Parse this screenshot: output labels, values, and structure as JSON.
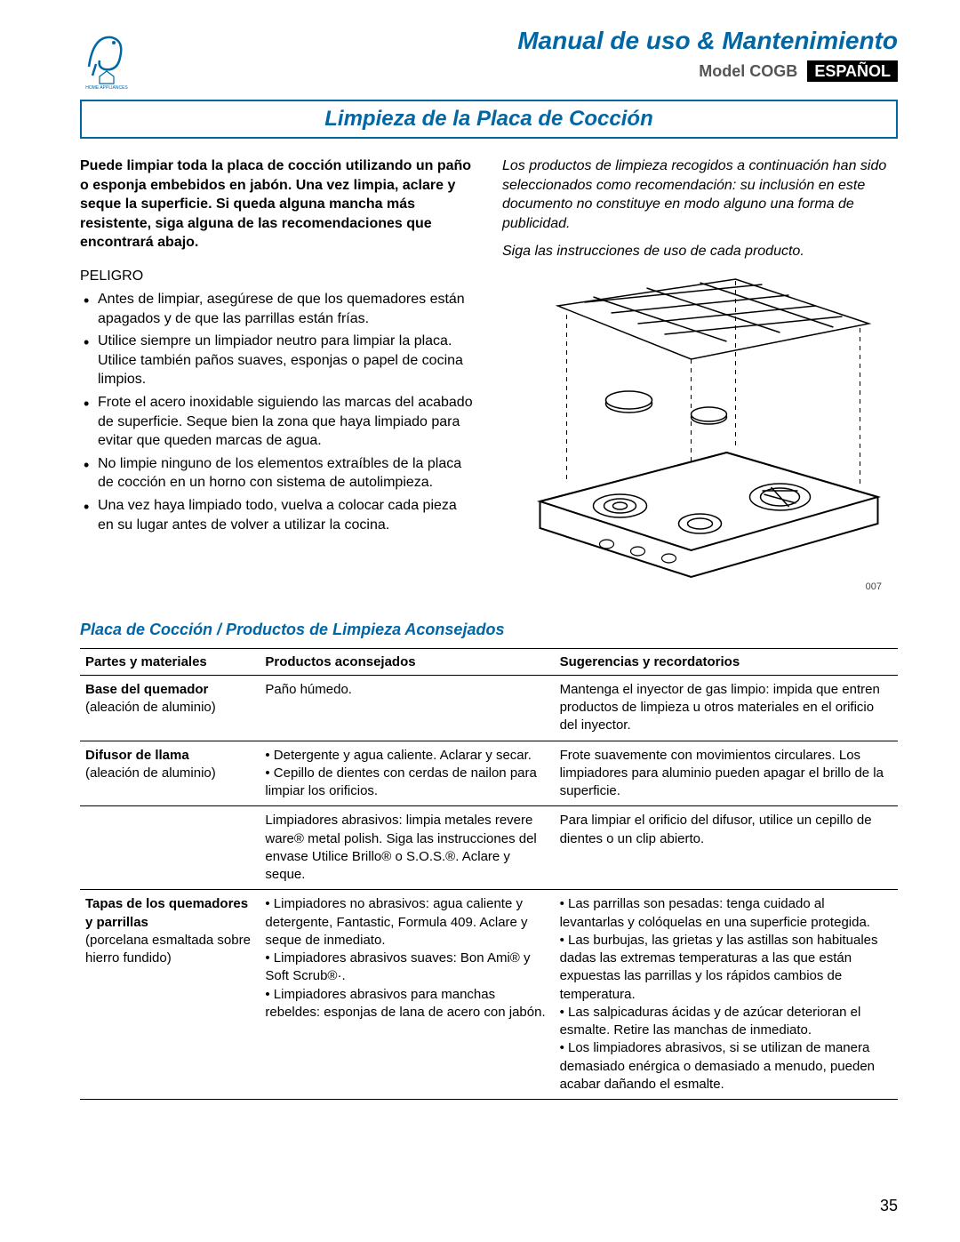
{
  "header": {
    "manual_title": "Manual de uso & Mantenimiento",
    "model_label": "Model",
    "model_value": "COGB",
    "language_badge": "ESPAÑOL"
  },
  "section_title": "Limpieza de la Placa de Cocción",
  "intro_left": "Puede limpiar toda la placa de cocción utilizando un paño o esponja embebidos en jabón. Una vez limpia, aclare y seque la superficie. Si queda alguna mancha más resistente, siga alguna de las recomendaciones que encontrará abajo.",
  "intro_right_1": "Los productos de limpieza recogidos a continuación han sido seleccionados como recomendación: su inclusión en este documento no constituye en modo alguno una forma de publicidad.",
  "intro_right_2": "Siga las instrucciones de uso de cada producto.",
  "danger_label": "PELIGRO",
  "danger_bullets": [
    "Antes de limpiar, asegúrese de que los quemadores están apagados y de que las parrillas están frías.",
    "Utilice siempre un limpiador neutro para limpiar la placa. Utilice también paños suaves, esponjas o papel de cocina limpios.",
    "Frote el acero inoxidable siguiendo las marcas del acabado de superficie. Seque bien la zona que haya limpiado para evitar que queden marcas de agua.",
    "No limpie ninguno de los elementos extraíbles de la placa de cocción en un horno con sistema de autolimpieza.",
    "Una vez haya limpiado todo, vuelva a colocar cada pieza en su lugar antes de volver a utilizar la cocina."
  ],
  "diagram_label": "007",
  "table_heading": "Placa de Cocción / Productos de Limpieza Aconsejados",
  "table": {
    "columns": [
      "Partes y materiales",
      "Productos aconsejados",
      "Sugerencias y recordatorios"
    ],
    "col_widths": [
      "22%",
      "36%",
      "42%"
    ],
    "rows": [
      {
        "part_name": "Base del quemador",
        "part_sub": "(aleación de aluminio)",
        "products": "Paño húmedo.",
        "tips": "Mantenga el inyector de gas limpio: impida que entren productos de limpieza u otros materiales en el orificio del inyector."
      },
      {
        "part_name": "Difusor de llama",
        "part_sub": "(aleación de aluminio)",
        "products": "• Detergente y agua caliente. Aclarar y secar.\n• Cepillo de dientes con cerdas de nailon para limpiar los orificios.",
        "tips": "Frote suavemente con movimientos circulares. Los limpiadores para aluminio pueden apagar el brillo de la superficie."
      },
      {
        "part_name": "",
        "part_sub": "",
        "products": "Limpiadores abrasivos: limpia metales revere ware® metal polish. Siga las instrucciones del envase Utilice Brillo® o S.O.S.®. Aclare y seque.",
        "tips": "Para limpiar el orificio del difusor, utilice un cepillo de dientes o un clip abierto."
      },
      {
        "part_name": "Tapas de los quemadores y parrillas",
        "part_sub": "(porcelana esmaltada sobre hierro fundido)",
        "products": "• Limpiadores no abrasivos: agua caliente y detergente, Fantastic, Formula 409. Aclare y seque de inmediato.\n• Limpiadores abrasivos suaves: Bon Ami® y Soft Scrub®·.\n• Limpiadores abrasivos para manchas rebeldes: esponjas de lana de acero con jabón.",
        "tips": "• Las parrillas son pesadas: tenga cuidado al levantarlas y colóquelas en una superficie protegida.\n• Las burbujas, las grietas y las astillas son habituales dadas las extremas temperaturas a las que están expuestas las parrillas y los rápidos cambios de temperatura.\n• Las salpicaduras ácidas y de azúcar deterioran el esmalte. Retire las manchas de inmediato.\n• Los limpiadores abrasivos, si se utilizan de manera demasiado enérgica o demasiado a menudo, pueden acabar dañando el esmalte."
      }
    ]
  },
  "page_number": "35",
  "colors": {
    "brand_blue": "#0066a4",
    "text": "#000000",
    "badge_bg": "#000000",
    "badge_fg": "#ffffff"
  }
}
